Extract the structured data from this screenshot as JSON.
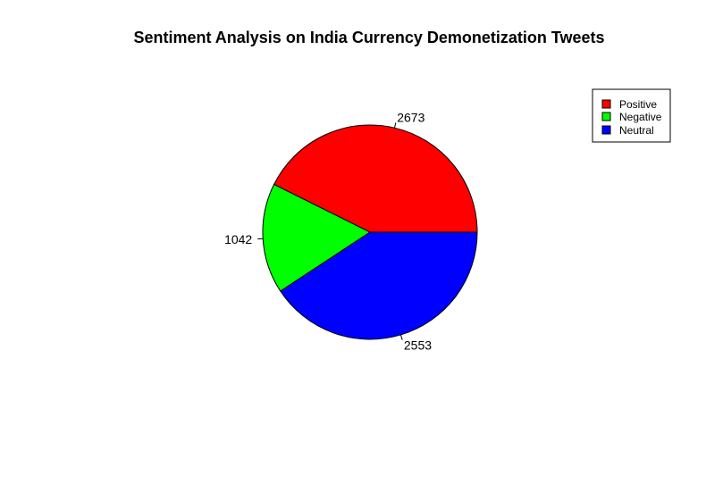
{
  "chart_data": {
    "type": "pie",
    "title": "Sentiment Analysis on India Currency Demonetization Tweets",
    "categories": [
      "Positive",
      "Negative",
      "Neutral"
    ],
    "values": [
      2673,
      1042,
      2553
    ],
    "labels": [
      "2673",
      "1042",
      "2553"
    ],
    "colors": [
      "#ff0000",
      "#00ff00",
      "#0000ff"
    ],
    "legend_position": "top-right",
    "legend": [
      {
        "label": "Positive",
        "color": "#ff0000"
      },
      {
        "label": "Negative",
        "color": "#00ff00"
      },
      {
        "label": "Neutral",
        "color": "#0000ff"
      }
    ]
  }
}
